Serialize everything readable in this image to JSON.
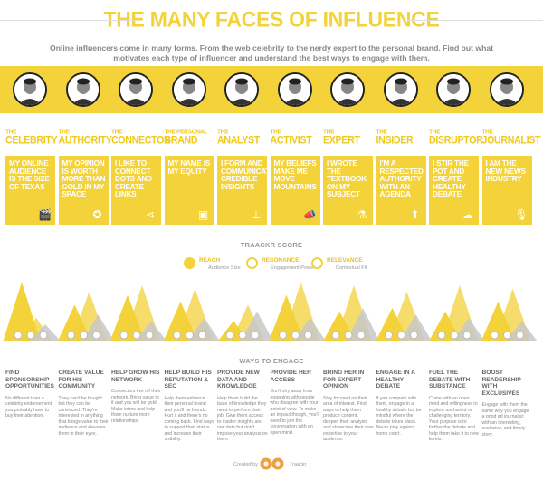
{
  "title": "THE MANY FACES OF INFLUENCE",
  "subtitle": "Online influencers come in many forms. From the web celebrity to the nerdy expert to the personal brand. Find out what motivates each type of influencer and understand the best ways to engage with them.",
  "colors": {
    "yellow": "#f3d23a",
    "dark_yellow": "#f0c91a",
    "grey": "#c8c8c8",
    "text": "#777777"
  },
  "influencers": [
    {
      "pre": "THE",
      "name": "CELEBRITY",
      "card": "MY ONLINE AUDIENCE IS THE SIZE OF TEXAS",
      "icon": "clapperboard-icon",
      "glyph": "🎬"
    },
    {
      "pre": "THE",
      "name": "AUTHORITY",
      "card": "MY OPINION IS WORTH MORE THAN GOLD IN MY SPACE",
      "icon": "medal-icon",
      "glyph": "✪"
    },
    {
      "pre": "THE",
      "name": "CONNECTOR",
      "card": "I LIKE TO CONNECT DOTS AND CREATE LINKS",
      "icon": "network-icon",
      "glyph": "⋖"
    },
    {
      "pre": "THE PERSONAL",
      "name": "BRAND",
      "card": "MY NAME IS MY EQUITY",
      "icon": "frame-icon",
      "glyph": "▣"
    },
    {
      "pre": "THE",
      "name": "ANALYST",
      "card": "I FORM AND COMMUNICATE CREDIBLE INSIGHTS",
      "icon": "flowchart-icon",
      "glyph": "⊥"
    },
    {
      "pre": "THE",
      "name": "ACTIVIST",
      "card": "MY BELIEFS MAKE ME MOVE MOUNTAINS",
      "icon": "megaphone-icon",
      "glyph": "📣"
    },
    {
      "pre": "THE",
      "name": "EXPERT",
      "card": "I WROTE THE TEXTBOOK ON MY SUBJECT",
      "icon": "flask-icon",
      "glyph": "⚗"
    },
    {
      "pre": "THE",
      "name": "INSIDER",
      "card": "I'M A RESPECTED AUTHORITY WITH AN AGENDA",
      "icon": "upload-icon",
      "glyph": "⬆"
    },
    {
      "pre": "THE",
      "name": "DISRUPTOR",
      "card": "I STIR THE POT AND CREATE HEALTHY DEBATE",
      "icon": "storm-cloud-icon",
      "glyph": "☁"
    },
    {
      "pre": "THE",
      "name": "JOURNALIST",
      "card": "I AM THE NEW NEWS INDUSTRY",
      "icon": "microphone-icon",
      "glyph": "🎙"
    }
  ],
  "score": {
    "label": "TRAACKR SCORE",
    "legend": [
      {
        "name": "REACH",
        "sub": "Audience Size",
        "icon": "reach-icon"
      },
      {
        "name": "RESONANCE",
        "sub": "Engagement Power",
        "icon": "resonance-icon"
      },
      {
        "name": "RELEVANCE",
        "sub": "Contextual Fit",
        "icon": "relevance-icon"
      }
    ],
    "scores": [
      {
        "reach": 0.9,
        "resonance": 0.35,
        "relevance": 0.25
      },
      {
        "reach": 0.55,
        "resonance": 0.75,
        "relevance": 0.4
      },
      {
        "reach": 0.7,
        "resonance": 0.85,
        "relevance": 0.3
      },
      {
        "reach": 0.6,
        "resonance": 0.8,
        "relevance": 0.35
      },
      {
        "reach": 0.3,
        "resonance": 0.55,
        "relevance": 0.45
      },
      {
        "reach": 0.7,
        "resonance": 0.9,
        "relevance": 0.35
      },
      {
        "reach": 0.45,
        "resonance": 0.85,
        "relevance": 0.5
      },
      {
        "reach": 0.5,
        "resonance": 0.75,
        "relevance": 0.4
      },
      {
        "reach": 0.45,
        "resonance": 0.85,
        "relevance": 0.35
      },
      {
        "reach": 0.6,
        "resonance": 0.8,
        "relevance": 0.3
      }
    ]
  },
  "ways": {
    "label": "WAYS TO ENGAGE",
    "items": [
      {
        "title": "FIND SPONSORSHIP OPPORTUNITIES",
        "desc": "No different than a celebrity endorsement, you probably have to buy their attention."
      },
      {
        "title": "CREATE VALUE FOR HIS COMMUNITY",
        "desc": "They can't be bought but they can be convinced. They're interested in anything that brings value to their audience and elevates them in their eyes."
      },
      {
        "title": "HELP GROW HIS NETWORK",
        "desc": "Connectors live off their network. Bring value to it and you will be gold. Make intros and help them nurture more relationships."
      },
      {
        "title": "HELP BUILD HIS REPUTATION & SEO",
        "desc": "Help them enhance their personal brand and you'll be friends. Hurt it and there's no coming back. Find ways to support their status and increase their visibility."
      },
      {
        "title": "PROVIDE NEW DATA AND KNOWLEDGE",
        "desc": "Help them build the base of knowledge they need to perform their job. Give them access to insider insights and raw data but don't impose your analysis on them."
      },
      {
        "title": "PROVIDE HER ACCESS",
        "desc": "Don't shy away from engaging with people who disagree with your point of view. To make an impact though, you'll need to join the conversation with an open mind."
      },
      {
        "title": "BRING HER IN FOR EXPERT OPINION",
        "desc": "Stay focused on their area of interest. Find ways to help them produce content, deepen their analysis and showcase their own expertise to your audience."
      },
      {
        "title": "ENGAGE IN A HEALTHY DEBATE",
        "desc": "If you compete with them, engage in a healthy debate but be mindful where the debate takes place. Never play against home court."
      },
      {
        "title": "FUEL THE DEBATE WITH SUBSTANCE",
        "desc": "Come with an open mind and willingness to explore uncharted or challenging territory. Your purpose is to further the debate and help them take it to new levels."
      },
      {
        "title": "BOOST READERSHIP WITH EXCLUSIVES",
        "desc": "Engage with them the same way you engage a good ad journalist: with an interesting, exclusive, and timely story."
      }
    ]
  },
  "footer": {
    "created_by": "Created by",
    "brand": "Traackr"
  }
}
